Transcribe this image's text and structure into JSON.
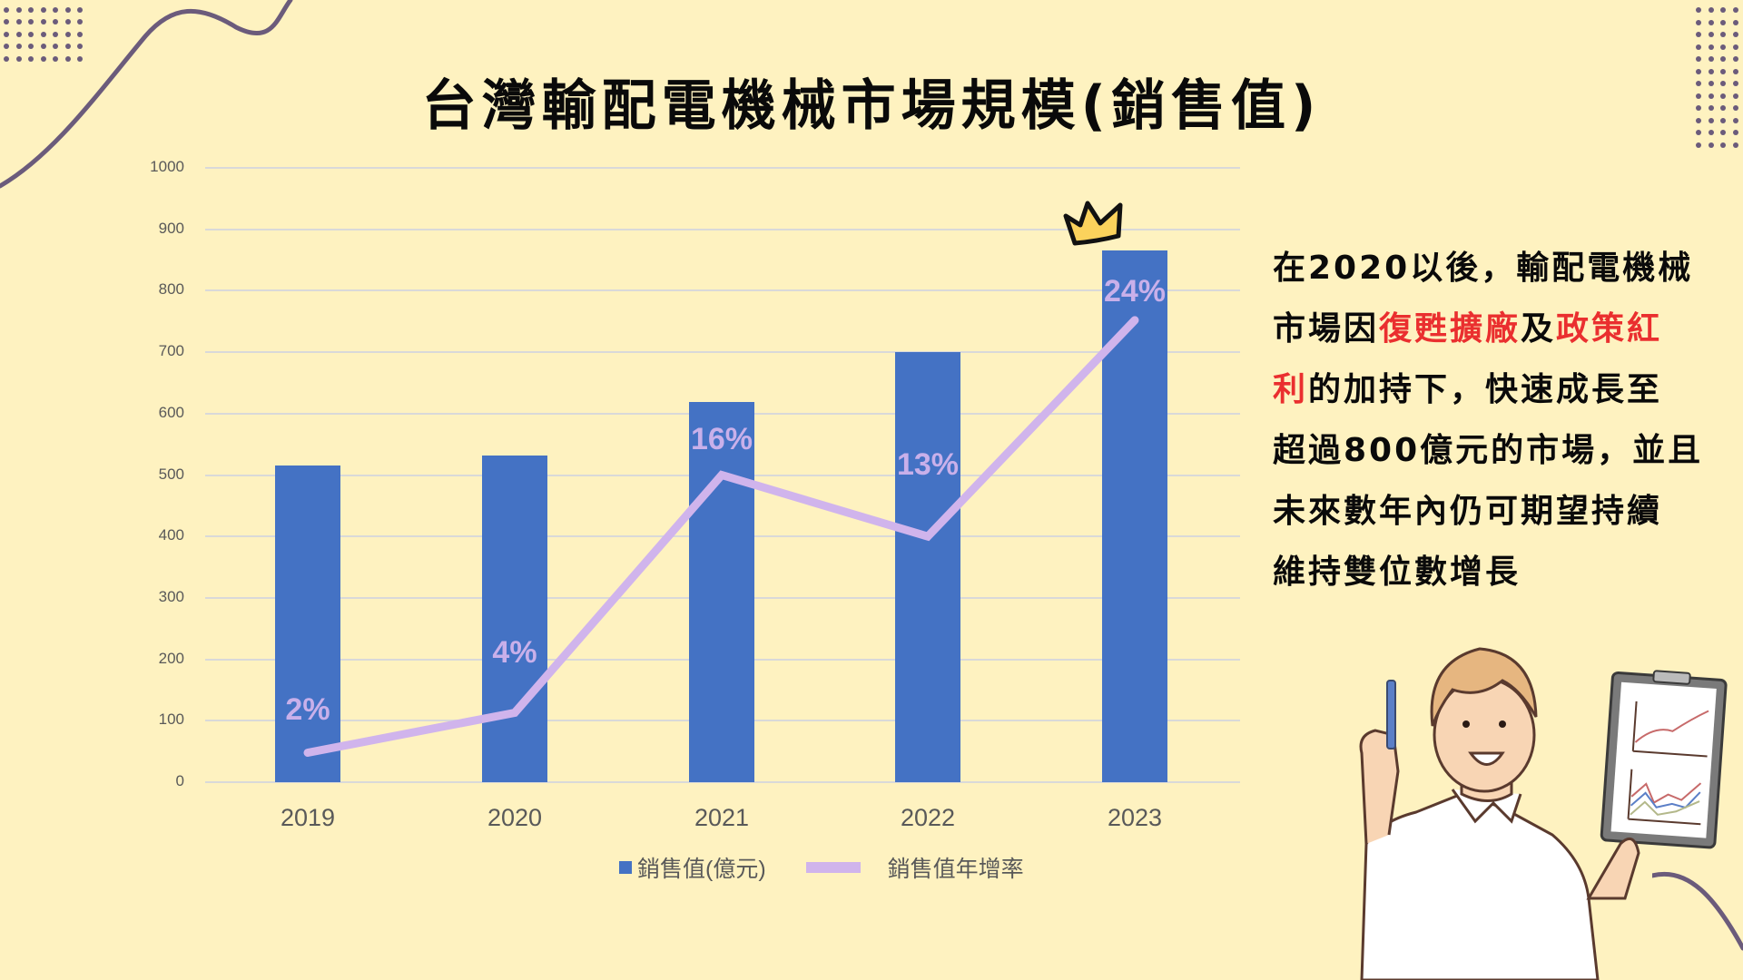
{
  "title": "台灣輸配電機械市場規模(銷售值)",
  "chart_data": {
    "type": "bar",
    "title": "台灣輸配電機械市場規模(銷售值)",
    "categories": [
      "2019",
      "2020",
      "2021",
      "2022",
      "2023"
    ],
    "series": [
      {
        "name": "銷售值(億元)",
        "type": "bar",
        "color": "#4472c4",
        "values": [
          516,
          532,
          619,
          700,
          866
        ]
      },
      {
        "name": "銷售值年增率",
        "type": "line",
        "color": "#d0b4ec",
        "values": [
          2,
          4,
          16,
          13,
          24
        ],
        "unit": "%",
        "labels": [
          "2%",
          "4%",
          "16%",
          "13%",
          "24%"
        ]
      }
    ],
    "xlabel": "",
    "ylabel": "",
    "ylim": [
      0,
      1000
    ],
    "yticks": [
      "0",
      "100",
      "200",
      "300",
      "400",
      "500",
      "600",
      "700",
      "800",
      "900",
      "1000"
    ],
    "grid": true,
    "legend_position": "bottom",
    "annotations": [
      "crown above 2023 bar"
    ]
  },
  "yaxis": {
    "ticks": [
      "1000",
      "900",
      "800",
      "700",
      "600",
      "500",
      "400",
      "300",
      "200",
      "100",
      "0"
    ]
  },
  "xaxis": {
    "ticks": [
      "2019",
      "2020",
      "2021",
      "2022",
      "2023"
    ]
  },
  "line_labels": [
    "2%",
    "4%",
    "16%",
    "13%",
    "24%"
  ],
  "legend": {
    "bar_label": "銷售值(億元)",
    "line_label": "銷售值年增率"
  },
  "description": {
    "lines": [
      [
        {
          "text": "在2020以後，輸配電機械",
          "highlight": false
        }
      ],
      [
        {
          "text": "市場因",
          "highlight": false
        },
        {
          "text": "復甦擴廠",
          "highlight": true
        },
        {
          "text": "及",
          "highlight": false
        },
        {
          "text": "政策紅",
          "highlight": true
        }
      ],
      [
        {
          "text": "利",
          "highlight": true
        },
        {
          "text": "的加持下，快速成長至",
          "highlight": false
        }
      ],
      [
        {
          "text": "超過800億元的市場，並且",
          "highlight": false
        }
      ],
      [
        {
          "text": "未來數年內仍可期望持續",
          "highlight": false
        }
      ],
      [
        {
          "text": "維持雙位數增長",
          "highlight": false
        }
      ]
    ]
  },
  "colors": {
    "background": "#fef2c0",
    "bar": "#4472c4",
    "line": "#d0b4ec",
    "highlight": "#ea2f2f",
    "decoration": "#6b5b7b"
  }
}
